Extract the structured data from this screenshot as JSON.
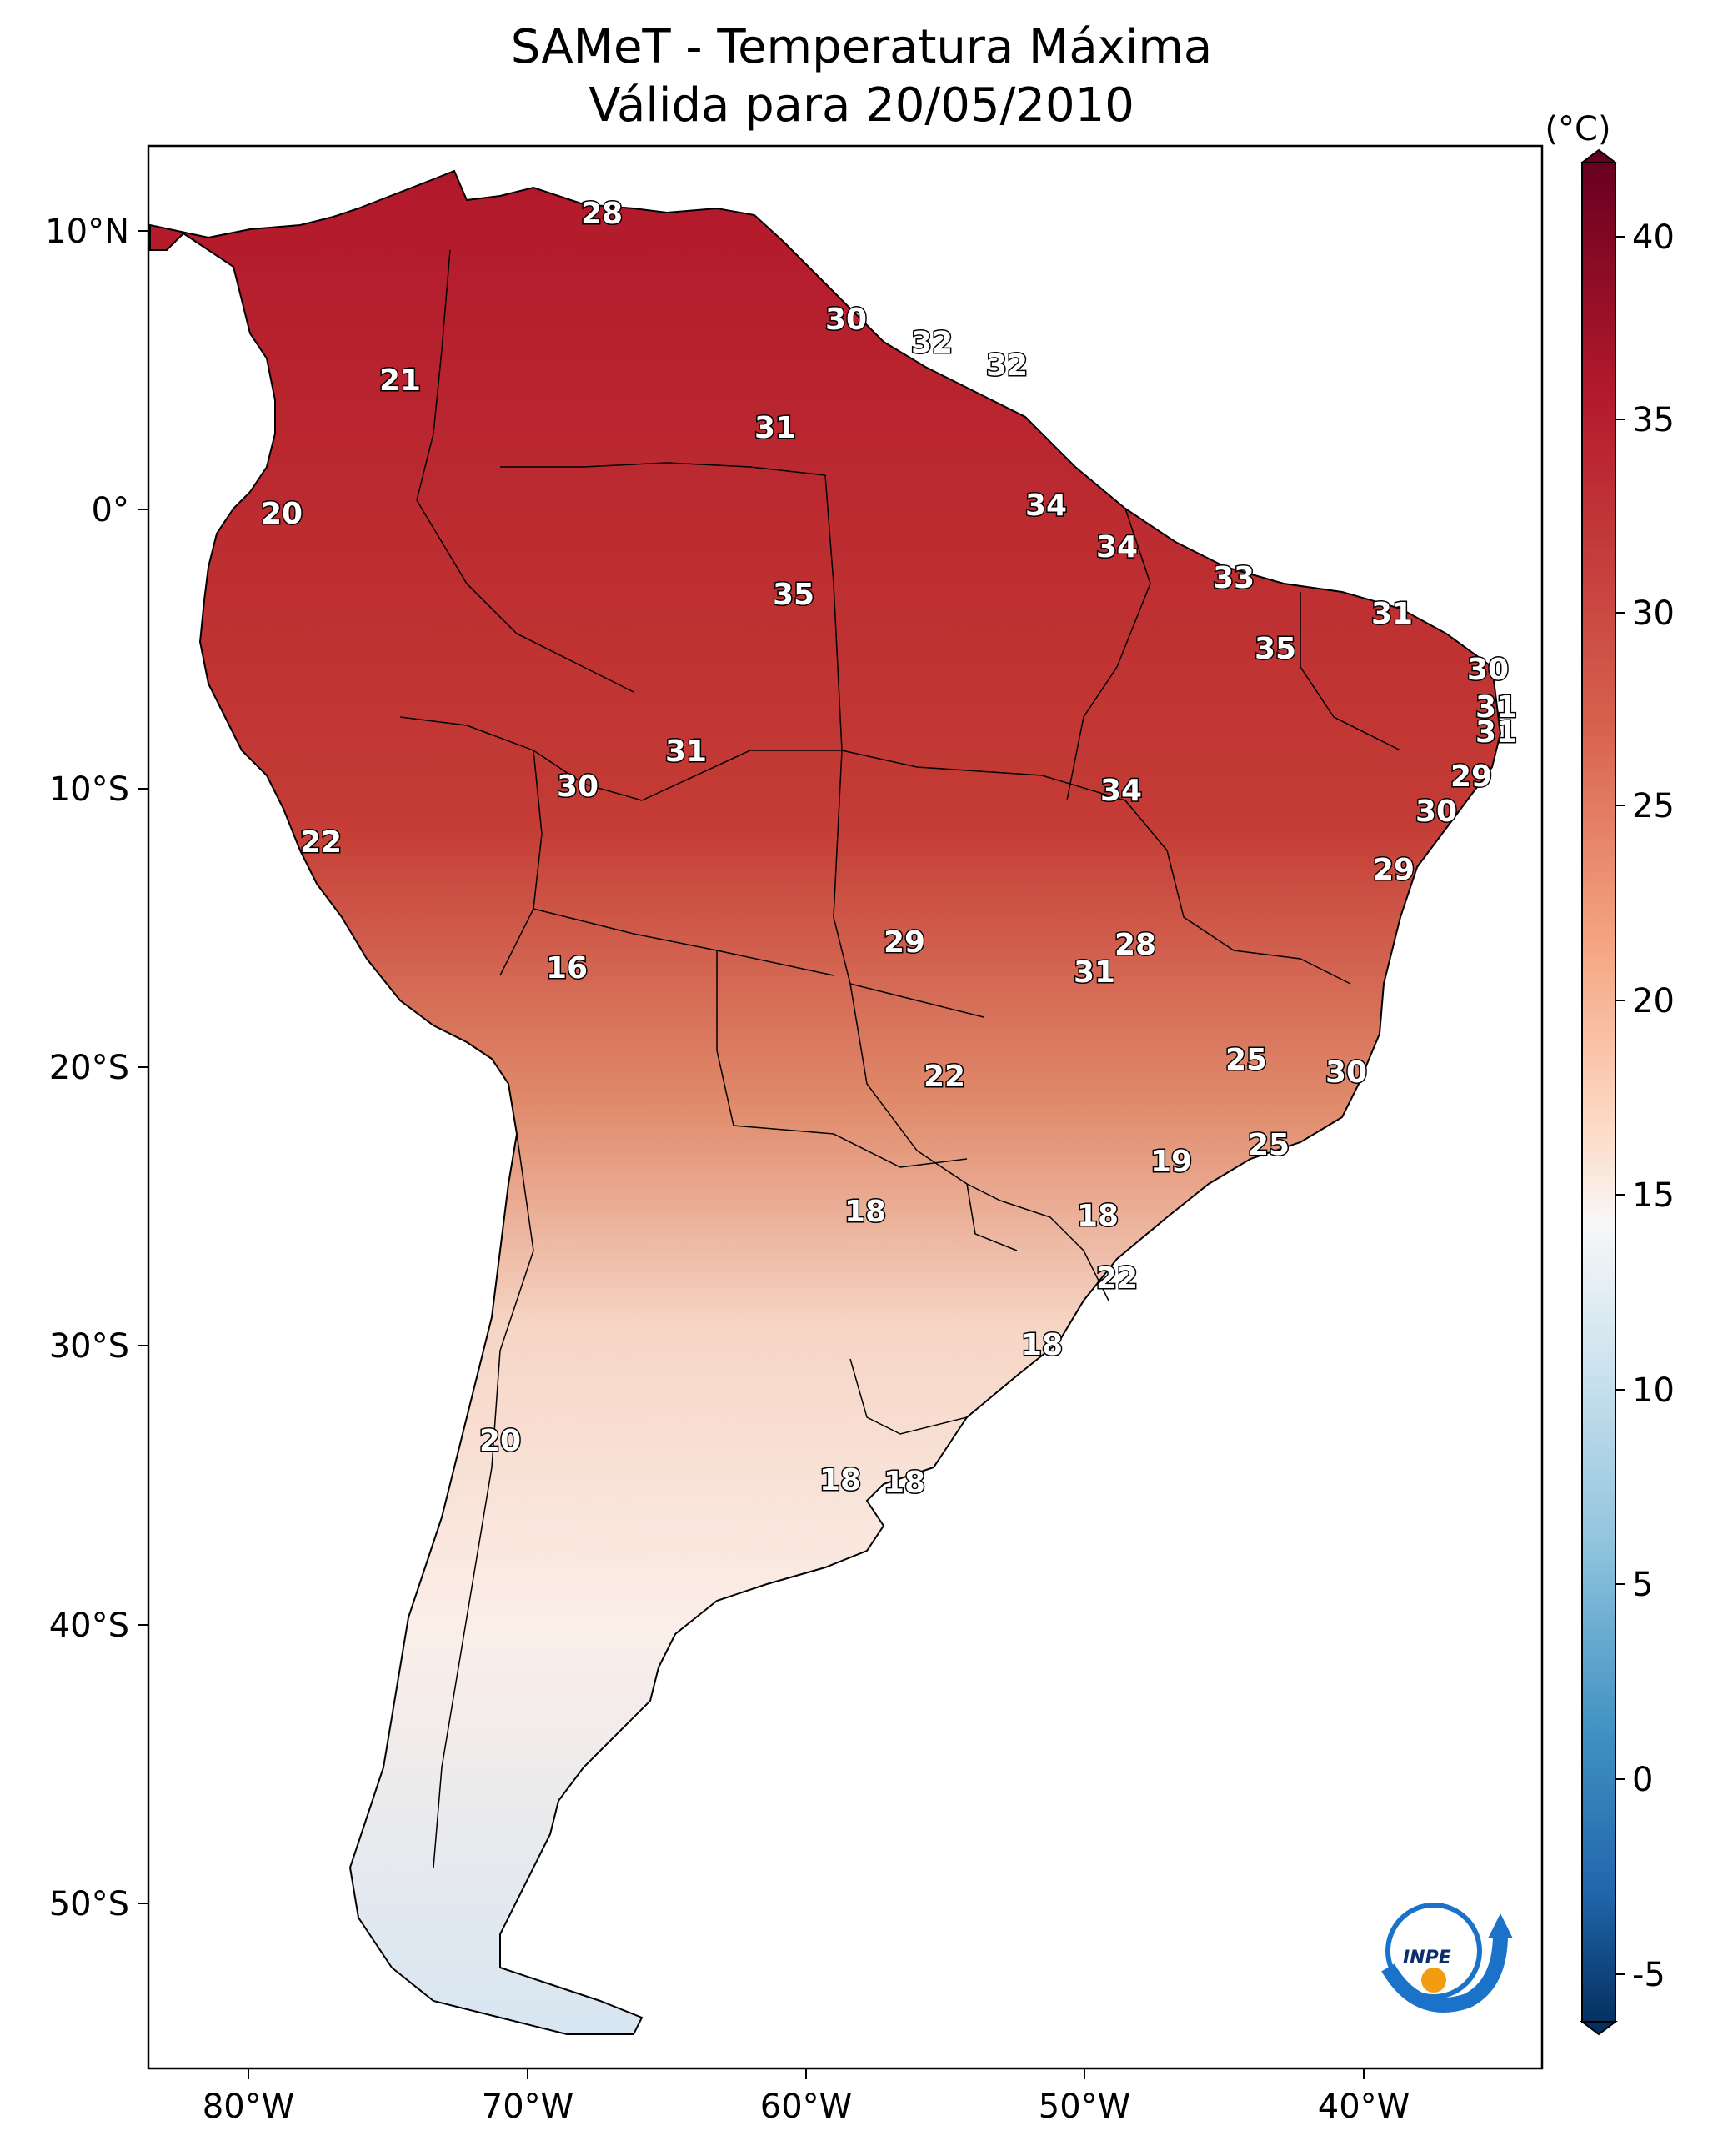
{
  "title": {
    "line1": "SAMeT - Temperatura Máxima",
    "line2": "Válida para 20/05/2010"
  },
  "colorbar": {
    "unit": "(°C)",
    "ticks": [
      "40",
      "35",
      "30",
      "25",
      "20",
      "15",
      "10",
      "5",
      "0",
      "-5"
    ],
    "colors": {
      "top": "#67001f",
      "upper": "#b2182b",
      "mid_high": "#ef8a62",
      "mid": "#f7f7f7",
      "mid_low": "#67a9cf",
      "lower": "#2166ac",
      "bottom": "#053061"
    }
  },
  "axes": {
    "lat_ticks": [
      "10°N",
      "0°",
      "10°S",
      "20°S",
      "30°S",
      "40°S",
      "50°S"
    ],
    "lon_ticks": [
      "80°W",
      "70°W",
      "60°W",
      "50°W",
      "40°W"
    ]
  },
  "map": {
    "land_warm": "#c0392b",
    "land_cool": "#f6d5c5",
    "value_labels": [
      {
        "id": "v28a",
        "text": "28"
      },
      {
        "id": "v21",
        "text": "21"
      },
      {
        "id": "v30a",
        "text": "30"
      },
      {
        "id": "v32a",
        "text": "32"
      },
      {
        "id": "v32b",
        "text": "32"
      },
      {
        "id": "v31a",
        "text": "31"
      },
      {
        "id": "v20a",
        "text": "20"
      },
      {
        "id": "v34a",
        "text": "34"
      },
      {
        "id": "v34b",
        "text": "34"
      },
      {
        "id": "v35a",
        "text": "35"
      },
      {
        "id": "v33",
        "text": "33"
      },
      {
        "id": "v31b",
        "text": "31"
      },
      {
        "id": "v35b",
        "text": "35"
      },
      {
        "id": "v30b",
        "text": "30"
      },
      {
        "id": "v31c",
        "text": "31"
      },
      {
        "id": "v31d",
        "text": "31"
      },
      {
        "id": "v31e",
        "text": "31"
      },
      {
        "id": "v29a",
        "text": "29"
      },
      {
        "id": "v30c",
        "text": "30"
      },
      {
        "id": "v34c",
        "text": "34"
      },
      {
        "id": "v30d",
        "text": "30"
      },
      {
        "id": "v22a",
        "text": "22"
      },
      {
        "id": "v29b",
        "text": "29"
      },
      {
        "id": "v16",
        "text": "16"
      },
      {
        "id": "v29c",
        "text": "29"
      },
      {
        "id": "v28b",
        "text": "28"
      },
      {
        "id": "v31f",
        "text": "31"
      },
      {
        "id": "v22b",
        "text": "22"
      },
      {
        "id": "v25a",
        "text": "25"
      },
      {
        "id": "v30e",
        "text": "30"
      },
      {
        "id": "v19",
        "text": "19"
      },
      {
        "id": "v25b",
        "text": "25"
      },
      {
        "id": "v18a",
        "text": "18"
      },
      {
        "id": "v18b",
        "text": "18"
      },
      {
        "id": "v22c",
        "text": "22"
      },
      {
        "id": "v18c",
        "text": "18"
      },
      {
        "id": "v20b",
        "text": "20"
      },
      {
        "id": "v18d",
        "text": "18"
      },
      {
        "id": "v18e",
        "text": "18"
      }
    ]
  },
  "logo": {
    "text": "INPE"
  }
}
